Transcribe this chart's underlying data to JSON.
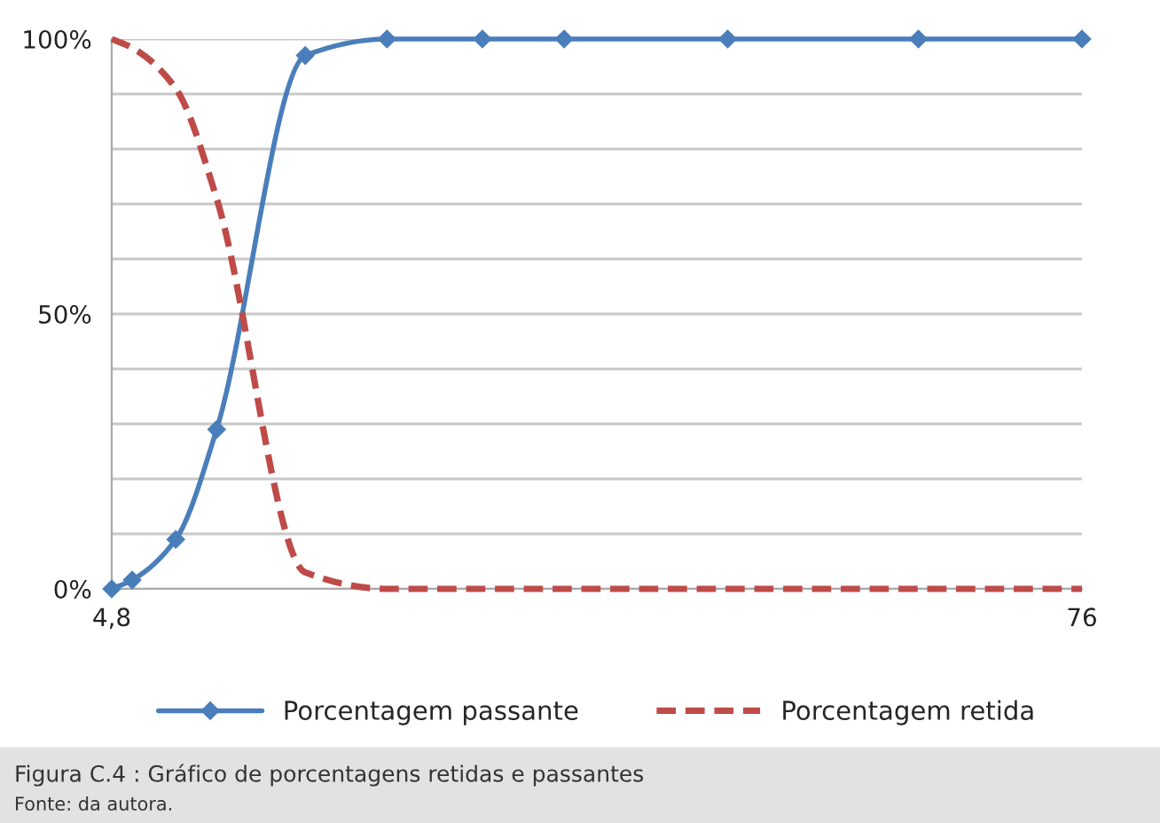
{
  "chart_data": {
    "type": "line",
    "x": [
      4.8,
      6.3,
      9.5,
      12.5,
      19,
      25,
      32,
      38,
      50,
      64,
      76
    ],
    "series": [
      {
        "name": "Porcentagem passante",
        "color": "#4a7ebb",
        "marker": "diamond",
        "line_style": "solid",
        "values": [
          0,
          1.6,
          9,
          29,
          97,
          100,
          100,
          100,
          100,
          100,
          100
        ]
      },
      {
        "name": "Porcentagem retida",
        "color": "#be4b48",
        "marker": "none",
        "line_style": "dashed",
        "values": [
          100,
          98.4,
          91,
          71,
          3,
          0,
          0,
          0,
          0,
          0,
          0
        ]
      }
    ],
    "xlim": [
      4.8,
      76
    ],
    "xticks": [
      {
        "value": 4.8,
        "label": "4,8"
      },
      76
    ],
    "ylim": [
      0,
      100
    ],
    "yticks": [
      {
        "value": 0,
        "label": "0%"
      },
      {
        "value": 10,
        "label": null
      },
      {
        "value": 20,
        "label": null
      },
      {
        "value": 30,
        "label": null
      },
      {
        "value": 40,
        "label": null
      },
      {
        "value": 50,
        "label": "50%"
      },
      {
        "value": 60,
        "label": null
      },
      {
        "value": 70,
        "label": null
      },
      {
        "value": 80,
        "label": null
      },
      {
        "value": 90,
        "label": null
      },
      {
        "value": 100,
        "label": "100%"
      }
    ],
    "grid": "y",
    "legend": "bottom",
    "annotations": [
      "Figura C.4 : Gráfico de porcentagens retidas e passantes",
      "Fonte: da autora."
    ]
  }
}
